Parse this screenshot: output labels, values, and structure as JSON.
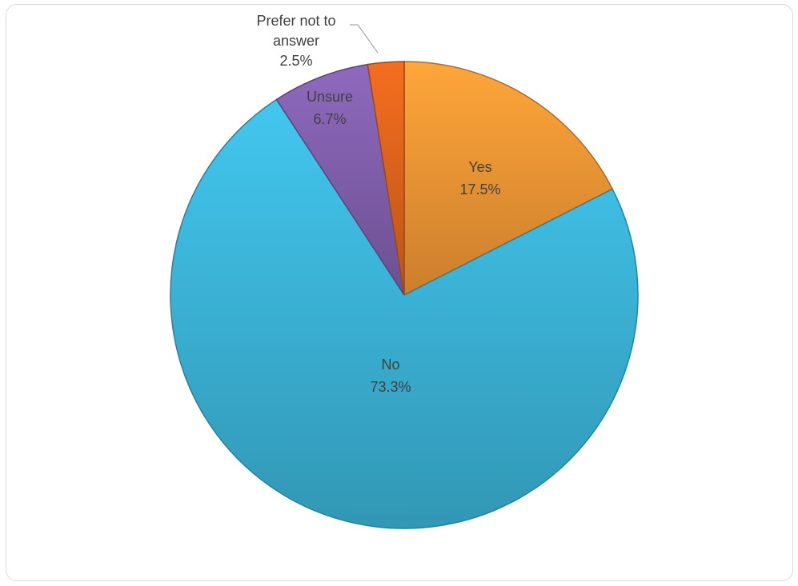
{
  "chart_data": {
    "type": "pie",
    "title": "",
    "slices": [
      {
        "label": "Yes",
        "value": 17.5,
        "pct_label": "17.5%",
        "color": "#f79a36"
      },
      {
        "label": "No",
        "value": 73.3,
        "pct_label": "73.3%",
        "color": "#3db8dd"
      },
      {
        "label": "Unsure",
        "value": 6.7,
        "pct_label": "6.7%",
        "color": "#8461b0"
      },
      {
        "label_lines": [
          "Prefer not to",
          "answer"
        ],
        "value": 2.5,
        "pct_label": "2.5%",
        "color": "#e3661d"
      }
    ],
    "start_angle_deg": 0,
    "direction": "clockwise",
    "legend": "none",
    "data_labels": "on slice; outside with leader line for smallest slice"
  }
}
